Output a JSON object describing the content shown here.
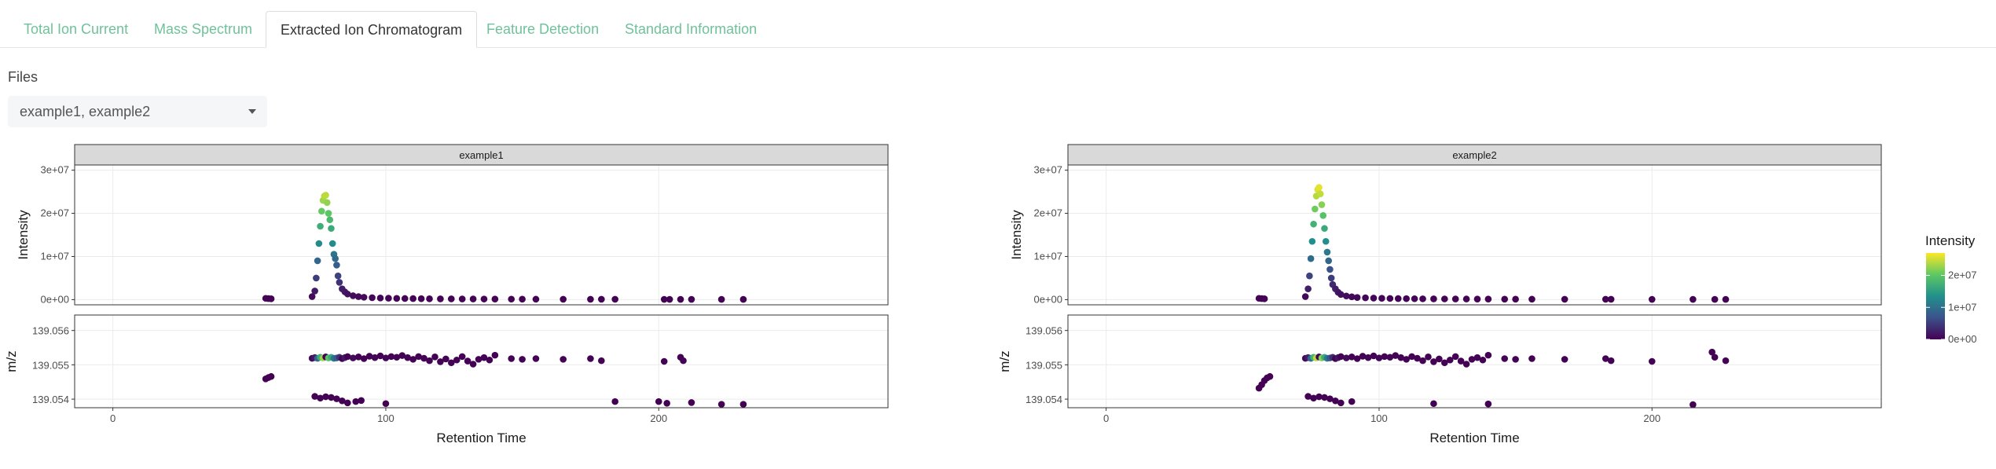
{
  "tabs": [
    {
      "label": "Total Ion Current",
      "active": false
    },
    {
      "label": "Mass Spectrum",
      "active": false
    },
    {
      "label": "Extracted Ion Chromatogram",
      "active": true
    },
    {
      "label": "Feature Detection",
      "active": false
    },
    {
      "label": "Standard Information",
      "active": false
    }
  ],
  "files": {
    "label": "Files",
    "value": "example1, example2"
  },
  "chart_data": {
    "type": "scatter",
    "xlabel": "Retention Time",
    "x_ticks": [
      0,
      100,
      200
    ],
    "xlim": [
      -14,
      284
    ],
    "intensity_panel": {
      "ylabel": "Intensity",
      "ylim": [
        -1200000,
        31200000
      ],
      "y_ticks": [
        "0e+00",
        "1e+07",
        "2e+07",
        "3e+07"
      ],
      "y_tick_values": [
        0,
        10000000,
        20000000,
        30000000
      ]
    },
    "mz_panel": {
      "ylabel": "m/z",
      "ylim": [
        139.05375,
        139.05645
      ],
      "y_ticks": [
        "139.054",
        "139.055",
        "139.056"
      ],
      "y_tick_values": [
        139.054,
        139.055,
        139.056
      ]
    },
    "legend": {
      "title": "Intensity",
      "labels": [
        "0e+00",
        "1e+07",
        "2e+07"
      ],
      "placement": "right",
      "colors": [
        "#440154",
        "#3b528b",
        "#21908c",
        "#5dc863",
        "#fde725"
      ],
      "max": 27000000
    },
    "facets": [
      {
        "name": "example1",
        "intensity": [
          [
            56,
            300000
          ],
          [
            57,
            250000
          ],
          [
            58,
            200000
          ],
          [
            73,
            700000
          ],
          [
            74,
            2000000
          ],
          [
            74.5,
            5000000
          ],
          [
            75,
            9000000
          ],
          [
            75.5,
            13000000
          ],
          [
            76,
            17000000
          ],
          [
            76.5,
            20500000
          ],
          [
            77,
            23000000
          ],
          [
            77.5,
            24000000
          ],
          [
            78,
            24200000
          ],
          [
            78.5,
            22500000
          ],
          [
            79,
            20000000
          ],
          [
            79.5,
            18500000
          ],
          [
            80,
            16500000
          ],
          [
            80.5,
            13000000
          ],
          [
            81,
            10500000
          ],
          [
            81.5,
            9500000
          ],
          [
            82,
            8000000
          ],
          [
            82.5,
            5500000
          ],
          [
            83,
            4000000
          ],
          [
            84,
            2500000
          ],
          [
            85,
            1800000
          ],
          [
            86,
            1300000
          ],
          [
            88,
            900000
          ],
          [
            90,
            700000
          ],
          [
            92,
            550000
          ],
          [
            95,
            450000
          ],
          [
            98,
            380000
          ],
          [
            101,
            330000
          ],
          [
            104,
            290000
          ],
          [
            107,
            260000
          ],
          [
            110,
            240000
          ],
          [
            113,
            220000
          ],
          [
            116,
            200000
          ],
          [
            120,
            180000
          ],
          [
            124,
            170000
          ],
          [
            128,
            160000
          ],
          [
            132,
            150000
          ],
          [
            136,
            140000
          ],
          [
            140,
            130000
          ],
          [
            146,
            120000
          ],
          [
            150,
            110000
          ],
          [
            155,
            100000
          ],
          [
            165,
            90000
          ],
          [
            175,
            80000
          ],
          [
            179,
            80000
          ],
          [
            184,
            80000
          ],
          [
            202,
            70000
          ],
          [
            204,
            70000
          ],
          [
            208,
            70000
          ],
          [
            212,
            70000
          ],
          [
            223,
            60000
          ],
          [
            231,
            60000
          ]
        ],
        "mz": [
          [
            56,
            139.05459
          ],
          [
            57,
            139.05463
          ],
          [
            58,
            139.05466
          ],
          [
            73,
            139.05519
          ],
          [
            74,
            139.05521
          ],
          [
            75,
            139.05519
          ],
          [
            76,
            139.05522
          ],
          [
            77,
            139.0552
          ],
          [
            78,
            139.05523
          ],
          [
            79,
            139.0552
          ],
          [
            80,
            139.05522
          ],
          [
            81,
            139.05519
          ],
          [
            82,
            139.0552
          ],
          [
            83,
            139.05522
          ],
          [
            84,
            139.05518
          ],
          [
            85,
            139.05521
          ],
          [
            86,
            139.05524
          ],
          [
            88,
            139.0552
          ],
          [
            90,
            139.05523
          ],
          [
            92,
            139.05518
          ],
          [
            94,
            139.05525
          ],
          [
            96,
            139.05521
          ],
          [
            98,
            139.05526
          ],
          [
            100,
            139.0552
          ],
          [
            102,
            139.05524
          ],
          [
            104,
            139.05522
          ],
          [
            106,
            139.05527
          ],
          [
            108,
            139.05521
          ],
          [
            110,
            139.05516
          ],
          [
            112,
            139.05524
          ],
          [
            114,
            139.05519
          ],
          [
            116,
            139.05512
          ],
          [
            118,
            139.05523
          ],
          [
            120,
            139.05509
          ],
          [
            122,
            139.05517
          ],
          [
            124,
            139.05506
          ],
          [
            126,
            139.05514
          ],
          [
            128,
            139.05524
          ],
          [
            130,
            139.05511
          ],
          [
            132,
            139.05502
          ],
          [
            134,
            139.05516
          ],
          [
            136,
            139.05521
          ],
          [
            138,
            139.05514
          ],
          [
            140,
            139.05528
          ],
          [
            146,
            139.05518
          ],
          [
            150,
            139.05516
          ],
          [
            155,
            139.05518
          ],
          [
            165,
            139.05516
          ],
          [
            175,
            139.05518
          ],
          [
            179,
            139.05512
          ],
          [
            202,
            139.0551
          ],
          [
            208,
            139.05522
          ],
          [
            209,
            139.05512
          ],
          [
            74,
            139.05408
          ],
          [
            76,
            139.05403
          ],
          [
            78,
            139.05407
          ],
          [
            80,
            139.05405
          ],
          [
            82,
            139.05401
          ],
          [
            84,
            139.05395
          ],
          [
            86,
            139.05389
          ],
          [
            89,
            139.05393
          ],
          [
            91,
            139.05396
          ],
          [
            100,
            139.05387
          ],
          [
            184,
            139.05393
          ],
          [
            200,
            139.05393
          ],
          [
            203,
            139.05388
          ],
          [
            212,
            139.0539
          ],
          [
            223,
            139.05385
          ],
          [
            231,
            139.05385
          ]
        ]
      },
      {
        "name": "example2",
        "intensity": [
          [
            56,
            300000
          ],
          [
            57,
            250000
          ],
          [
            58,
            200000
          ],
          [
            73,
            700000
          ],
          [
            74,
            2500000
          ],
          [
            74.5,
            5500000
          ],
          [
            75,
            9500000
          ],
          [
            75.5,
            13500000
          ],
          [
            76,
            17500000
          ],
          [
            76.5,
            21000000
          ],
          [
            77,
            24000000
          ],
          [
            77.5,
            25500000
          ],
          [
            78,
            26000000
          ],
          [
            78.5,
            24500000
          ],
          [
            79,
            22000000
          ],
          [
            79.5,
            19500000
          ],
          [
            80,
            16500000
          ],
          [
            80.5,
            13500000
          ],
          [
            81,
            11000000
          ],
          [
            81.5,
            9000000
          ],
          [
            82,
            7000000
          ],
          [
            82.5,
            5000000
          ],
          [
            83,
            3500000
          ],
          [
            84,
            2500000
          ],
          [
            85,
            1700000
          ],
          [
            86,
            1200000
          ],
          [
            88,
            850000
          ],
          [
            90,
            650000
          ],
          [
            92,
            500000
          ],
          [
            95,
            420000
          ],
          [
            98,
            360000
          ],
          [
            101,
            310000
          ],
          [
            104,
            280000
          ],
          [
            107,
            250000
          ],
          [
            110,
            230000
          ],
          [
            113,
            210000
          ],
          [
            116,
            190000
          ],
          [
            120,
            175000
          ],
          [
            124,
            165000
          ],
          [
            128,
            155000
          ],
          [
            132,
            145000
          ],
          [
            136,
            135000
          ],
          [
            140,
            125000
          ],
          [
            146,
            115000
          ],
          [
            150,
            105000
          ],
          [
            156,
            100000
          ],
          [
            168,
            90000
          ],
          [
            183,
            80000
          ],
          [
            185,
            80000
          ],
          [
            200,
            70000
          ],
          [
            215,
            70000
          ],
          [
            223,
            60000
          ],
          [
            227,
            60000
          ]
        ],
        "mz": [
          [
            56,
            139.05432
          ],
          [
            57,
            139.05442
          ],
          [
            58,
            139.05454
          ],
          [
            59,
            139.05462
          ],
          [
            60,
            139.05466
          ],
          [
            73,
            139.05519
          ],
          [
            74,
            139.05521
          ],
          [
            75,
            139.05519
          ],
          [
            76,
            139.05522
          ],
          [
            77,
            139.0552
          ],
          [
            78,
            139.05523
          ],
          [
            79,
            139.0552
          ],
          [
            80,
            139.05522
          ],
          [
            81,
            139.05519
          ],
          [
            82,
            139.0552
          ],
          [
            83,
            139.05522
          ],
          [
            84,
            139.05518
          ],
          [
            85,
            139.05521
          ],
          [
            86,
            139.05524
          ],
          [
            88,
            139.0552
          ],
          [
            90,
            139.05523
          ],
          [
            92,
            139.05518
          ],
          [
            94,
            139.05525
          ],
          [
            96,
            139.05521
          ],
          [
            98,
            139.05526
          ],
          [
            100,
            139.0552
          ],
          [
            102,
            139.05524
          ],
          [
            104,
            139.05522
          ],
          [
            106,
            139.05527
          ],
          [
            108,
            139.05521
          ],
          [
            110,
            139.05516
          ],
          [
            112,
            139.05524
          ],
          [
            114,
            139.05519
          ],
          [
            116,
            139.05512
          ],
          [
            118,
            139.05523
          ],
          [
            120,
            139.05509
          ],
          [
            122,
            139.05517
          ],
          [
            124,
            139.05506
          ],
          [
            126,
            139.05514
          ],
          [
            128,
            139.05524
          ],
          [
            130,
            139.05511
          ],
          [
            132,
            139.05502
          ],
          [
            134,
            139.05516
          ],
          [
            136,
            139.05521
          ],
          [
            138,
            139.05514
          ],
          [
            140,
            139.05528
          ],
          [
            146,
            139.05518
          ],
          [
            150,
            139.05516
          ],
          [
            156,
            139.05518
          ],
          [
            168,
            139.05516
          ],
          [
            183,
            139.05518
          ],
          [
            185,
            139.05512
          ],
          [
            200,
            139.0551
          ],
          [
            222,
            139.05537
          ],
          [
            223,
            139.05522
          ],
          [
            227,
            139.05512
          ],
          [
            74,
            139.05408
          ],
          [
            76,
            139.05403
          ],
          [
            78,
            139.05407
          ],
          [
            80,
            139.05405
          ],
          [
            82,
            139.05401
          ],
          [
            84,
            139.05395
          ],
          [
            86,
            139.05389
          ],
          [
            90,
            139.05393
          ],
          [
            120,
            139.05387
          ],
          [
            140,
            139.05386
          ],
          [
            215,
            139.05384
          ]
        ]
      }
    ]
  }
}
